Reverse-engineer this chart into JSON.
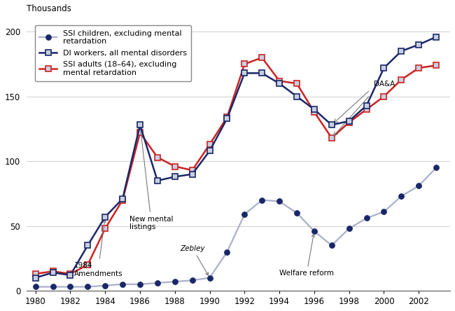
{
  "ylabel": "Thousands",
  "ylim": [
    0,
    210
  ],
  "yticks": [
    0,
    50,
    100,
    150,
    200
  ],
  "xlim": [
    1979.5,
    2003.8
  ],
  "xticks": [
    1980,
    1982,
    1984,
    1986,
    1988,
    1990,
    1992,
    1994,
    1996,
    1998,
    2000,
    2002
  ],
  "di_years": [
    1980,
    1981,
    1982,
    1983,
    1984,
    1985,
    1986,
    1987,
    1988,
    1989,
    1990,
    1991,
    1992,
    1993,
    1994,
    1995,
    1996,
    1997,
    1998,
    1999,
    2000,
    2001,
    2002,
    2003
  ],
  "di_values": [
    10,
    14,
    12,
    35,
    57,
    71,
    128,
    85,
    88,
    90,
    108,
    133,
    168,
    168,
    160,
    150,
    140,
    128,
    131,
    143,
    172,
    185,
    190,
    196
  ],
  "ssi_adult_years": [
    1980,
    1981,
    1982,
    1983,
    1984,
    1985,
    1986,
    1987,
    1988,
    1989,
    1990,
    1991,
    1992,
    1993,
    1994,
    1995,
    1996,
    1997,
    1998,
    1999,
    2000,
    2001,
    2002,
    2003
  ],
  "ssi_adult_values": [
    13,
    15,
    13,
    20,
    48,
    70,
    122,
    103,
    96,
    93,
    113,
    134,
    175,
    180,
    162,
    160,
    138,
    118,
    130,
    140,
    150,
    163,
    172,
    174
  ],
  "ssi_child_years": [
    1980,
    1981,
    1982,
    1983,
    1984,
    1985,
    1986,
    1987,
    1988,
    1989,
    1990,
    1991,
    1992,
    1993,
    1994,
    1995,
    1996,
    1997,
    1998,
    1999,
    2000,
    2001,
    2002,
    2003
  ],
  "ssi_child_values": [
    3,
    3,
    3,
    3,
    4,
    5,
    5,
    6,
    7,
    8,
    10,
    30,
    59,
    70,
    69,
    60,
    46,
    35,
    48,
    56,
    61,
    73,
    81,
    95
  ],
  "di_color": "#1a2869",
  "ssi_adult_color": "#cc2222",
  "ssi_child_line_color": "#aab0cc",
  "ssi_child_marker_color": "#1a2869",
  "marker_face_color": "#c8cfe0",
  "grid_color": "#d0d0d0"
}
